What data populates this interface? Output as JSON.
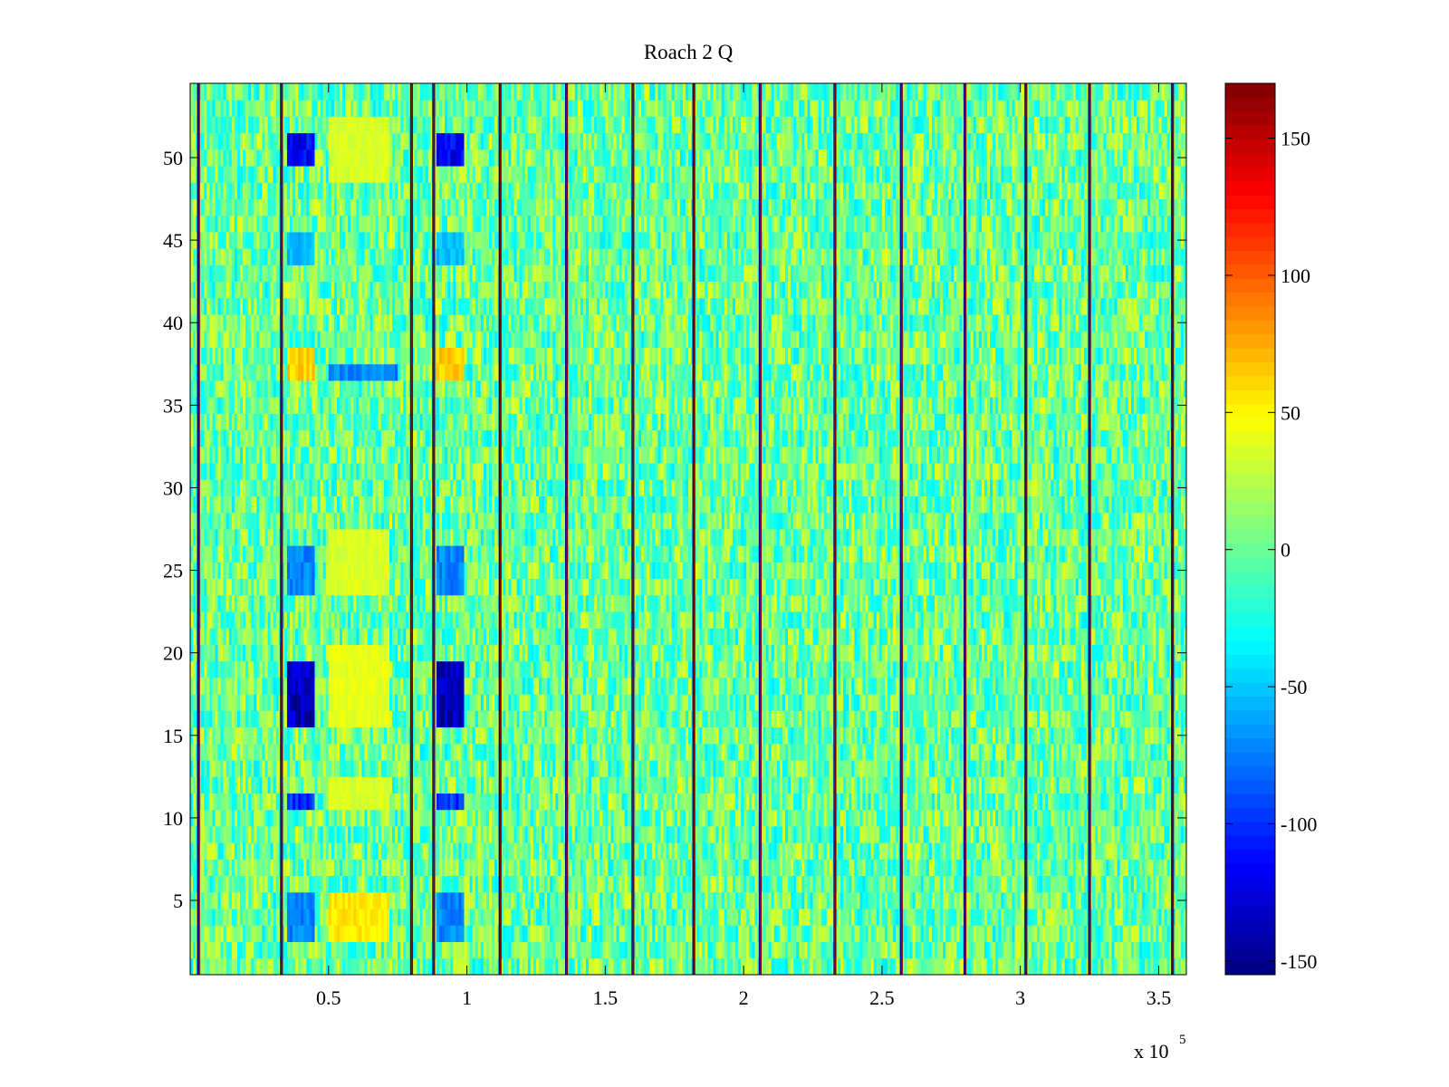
{
  "chart_data": {
    "type": "heatmap",
    "title": "Roach 2 Q",
    "xlabel": "",
    "ylabel": "",
    "x_exponent_label": "x 10",
    "x_exponent": "5",
    "xlim": [
      0,
      3.6
    ],
    "ylim": [
      0.5,
      54.5
    ],
    "x_ticks": [
      0.5,
      1,
      1.5,
      2,
      2.5,
      3,
      3.5
    ],
    "x_tick_labels": [
      "0.5",
      "1",
      "1.5",
      "2",
      "2.5",
      "3",
      "3.5"
    ],
    "y_ticks": [
      5,
      10,
      15,
      20,
      25,
      30,
      35,
      40,
      45,
      50
    ],
    "y_tick_labels": [
      "5",
      "10",
      "15",
      "20",
      "25",
      "30",
      "35",
      "40",
      "45",
      "50"
    ],
    "rows": 54,
    "colormap": "jet",
    "color_range": [
      -155,
      170
    ],
    "colorbar": {
      "ticks": [
        -150,
        -100,
        -50,
        0,
        50,
        100,
        150
      ],
      "tick_labels": [
        "-150",
        "-100",
        "-50",
        "0",
        "50",
        "100",
        "150"
      ]
    },
    "background_value_range": [
      -40,
      40
    ],
    "spike_columns_x": [
      0.03,
      0.33,
      0.8,
      0.88,
      1.12,
      1.36,
      1.6,
      1.82,
      2.06,
      2.33,
      2.57,
      2.8,
      3.02,
      3.25,
      3.55
    ],
    "spike_value": 170,
    "low_value_blocks": [
      {
        "x": [
          0.35,
          0.45
        ],
        "rows": [
          50,
          51
        ],
        "value": -130
      },
      {
        "x": [
          0.89,
          0.99
        ],
        "rows": [
          50,
          51
        ],
        "value": -130
      },
      {
        "x": [
          0.35,
          0.45
        ],
        "rows": [
          16,
          19
        ],
        "value": -155
      },
      {
        "x": [
          0.89,
          0.99
        ],
        "rows": [
          16,
          19
        ],
        "value": -150
      },
      {
        "x": [
          0.35,
          0.45
        ],
        "rows": [
          11,
          11
        ],
        "value": -110
      },
      {
        "x": [
          0.89,
          0.99
        ],
        "rows": [
          11,
          11
        ],
        "value": -110
      },
      {
        "x": [
          0.35,
          0.45
        ],
        "rows": [
          24,
          26
        ],
        "value": -80
      },
      {
        "x": [
          0.89,
          0.99
        ],
        "rows": [
          24,
          26
        ],
        "value": -80
      },
      {
        "x": [
          0.35,
          0.45
        ],
        "rows": [
          3,
          5
        ],
        "value": -80
      },
      {
        "x": [
          0.89,
          0.99
        ],
        "rows": [
          3,
          5
        ],
        "value": -80
      },
      {
        "x": [
          0.35,
          0.45
        ],
        "rows": [
          44,
          45
        ],
        "value": -60
      },
      {
        "x": [
          0.89,
          0.99
        ],
        "rows": [
          44,
          45
        ],
        "value": -60
      },
      {
        "x": [
          0.5,
          0.75
        ],
        "rows": [
          37,
          37
        ],
        "value": -80
      }
    ],
    "high_value_blocks": [
      {
        "x": [
          0.35,
          0.45
        ],
        "rows": [
          37,
          38
        ],
        "value": 70
      },
      {
        "x": [
          0.89,
          0.99
        ],
        "rows": [
          37,
          38
        ],
        "value": 70
      },
      {
        "x": [
          0.5,
          0.72
        ],
        "rows": [
          49,
          52
        ],
        "value": 40
      },
      {
        "x": [
          0.5,
          0.72
        ],
        "rows": [
          16,
          20
        ],
        "value": 45
      },
      {
        "x": [
          0.5,
          0.72
        ],
        "rows": [
          3,
          5
        ],
        "value": 60
      },
      {
        "x": [
          0.5,
          0.72
        ],
        "rows": [
          11,
          12
        ],
        "value": 40
      },
      {
        "x": [
          0.5,
          0.72
        ],
        "rows": [
          24,
          27
        ],
        "value": 40
      }
    ]
  }
}
